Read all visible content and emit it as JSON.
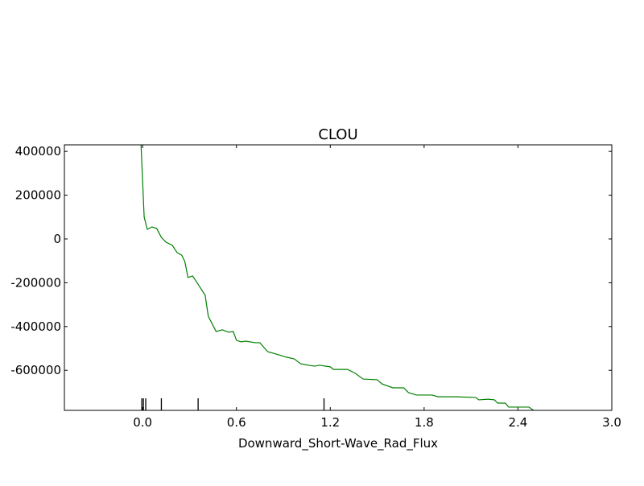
{
  "chart_data": {
    "type": "line",
    "title": "CLOU",
    "xlabel": "Downward_Short-Wave_Rad_Flux",
    "x": [
      -0.01,
      0.01,
      0.03,
      0.06,
      0.09,
      0.12,
      0.15,
      0.19,
      0.22,
      0.25,
      0.27,
      0.29,
      0.32,
      0.35,
      0.4,
      0.42,
      0.47,
      0.51,
      0.55,
      0.58,
      0.6,
      0.63,
      0.66,
      0.72,
      0.75,
      0.8,
      0.87,
      0.92,
      0.97,
      1.01,
      1.06,
      1.1,
      1.13,
      1.2,
      1.22,
      1.31,
      1.36,
      1.41,
      1.5,
      1.53,
      1.6,
      1.67,
      1.7,
      1.75,
      1.85,
      1.89,
      2.0,
      2.13,
      2.15,
      2.21,
      2.25,
      2.27,
      2.32,
      2.34,
      2.47,
      2.5
    ],
    "series": [
      {
        "color": "#008000",
        "values": [
          430000,
          100000,
          44000,
          55000,
          48000,
          7000,
          -15000,
          -29000,
          -62000,
          -74000,
          -103000,
          -176000,
          -169000,
          -202000,
          -257000,
          -353000,
          -423000,
          -415000,
          -426000,
          -423000,
          -463000,
          -470000,
          -467000,
          -474000,
          -474000,
          -515000,
          -529000,
          -540000,
          -548000,
          -570000,
          -577000,
          -581000,
          -577000,
          -584000,
          -596000,
          -596000,
          -614000,
          -640000,
          -643000,
          -662000,
          -680000,
          -680000,
          -702000,
          -713000,
          -713000,
          -721000,
          -721000,
          -724000,
          -735000,
          -732000,
          -735000,
          -750000,
          -750000,
          -768000,
          -768000,
          -783000
        ]
      }
    ],
    "rug": [
      -0.005,
      0.005,
      0.02,
      0.12,
      0.355,
      1.16
    ],
    "xlim": [
      -0.5,
      3.0
    ],
    "ylim": [
      -783000,
      430000
    ],
    "xticks": [
      {
        "value": 0,
        "label": "0.0"
      },
      0.6,
      1.2,
      1.8,
      2.4,
      {
        "value": 3,
        "label": "3.0"
      }
    ],
    "yticks": [
      -600000,
      -400000,
      -200000,
      0,
      200000,
      400000
    ]
  }
}
